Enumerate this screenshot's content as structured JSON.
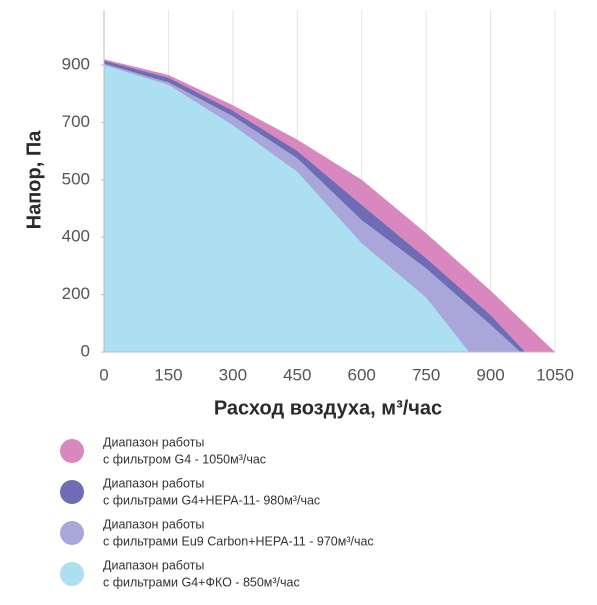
{
  "chart_data": {
    "type": "area",
    "x_label": "Расход воздуха, м³/час",
    "y_label": "Напор, Па",
    "xlim": [
      0,
      1050
    ],
    "xticks": [
      0,
      150,
      300,
      450,
      600,
      750,
      900,
      1050
    ],
    "ylim": [
      0,
      1090
    ],
    "yticks": [
      0,
      200,
      400,
      500,
      700,
      900
    ],
    "grid": true,
    "series": [
      {
        "name": [
          "Диапазон  работы",
          "с фильтром G4 - 1050м³/час"
        ],
        "color": "#d987bf",
        "x": [
          0,
          150,
          300,
          450,
          600,
          750,
          900,
          1050
        ],
        "values": [
          920,
          865,
          760,
          640,
          500,
          407,
          214,
          0
        ]
      },
      {
        "name": [
          "Диапазон  работы",
          "с фильтрами G4+HEPA-11- 980м³/час"
        ],
        "color": "#6d6db5",
        "x": [
          0,
          150,
          300,
          450,
          600,
          750,
          900,
          980
        ],
        "values": [
          915,
          855,
          740,
          600,
          456,
          326,
          128,
          0
        ]
      },
      {
        "name": [
          "Диапазон  работы",
          "с фильтрами Eu9 Carbon+HEPA-11 - 970м³/час"
        ],
        "color": "#a9a6d9",
        "x": [
          0,
          150,
          300,
          450,
          600,
          750,
          900,
          970
        ],
        "values": [
          905,
          840,
          722,
          575,
          430,
          292,
          95,
          0
        ]
      },
      {
        "name": [
          "Диапазон  работы",
          "с фильтрами G4+ФКО - 850м³/час"
        ],
        "color": "#addff2",
        "x": [
          0,
          150,
          300,
          450,
          600,
          750,
          850
        ],
        "values": [
          900,
          831,
          690,
          528,
          379,
          190,
          0
        ]
      }
    ]
  }
}
